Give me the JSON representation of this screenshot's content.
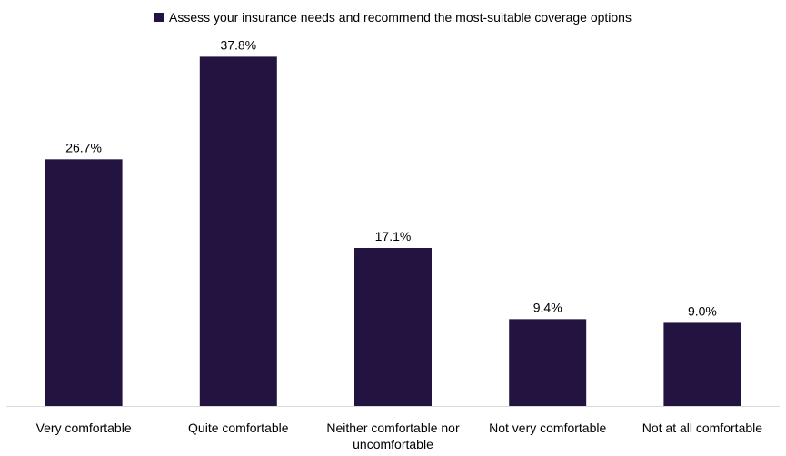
{
  "chart_data": {
    "type": "bar",
    "categories": [
      [
        "Very comfortable"
      ],
      [
        "Quite comfortable"
      ],
      [
        "Neither comfortable nor",
        "uncomfortable"
      ],
      [
        "Not very comfortable"
      ],
      [
        "Not at all comfortable"
      ]
    ],
    "series": [
      {
        "name": "Assess your insurance needs and recommend the most-suitable coverage options",
        "values": [
          26.7,
          37.8,
          17.1,
          9.4,
          9.0
        ],
        "labels": [
          "26.7%",
          "37.8%",
          "17.1%",
          "9.4%",
          "9.0%"
        ]
      }
    ],
    "ylim": [
      0,
      40
    ],
    "grid": false,
    "legend": "top-center",
    "colors": {
      "bar": "#231340",
      "axis": "#d9d9d9"
    }
  }
}
